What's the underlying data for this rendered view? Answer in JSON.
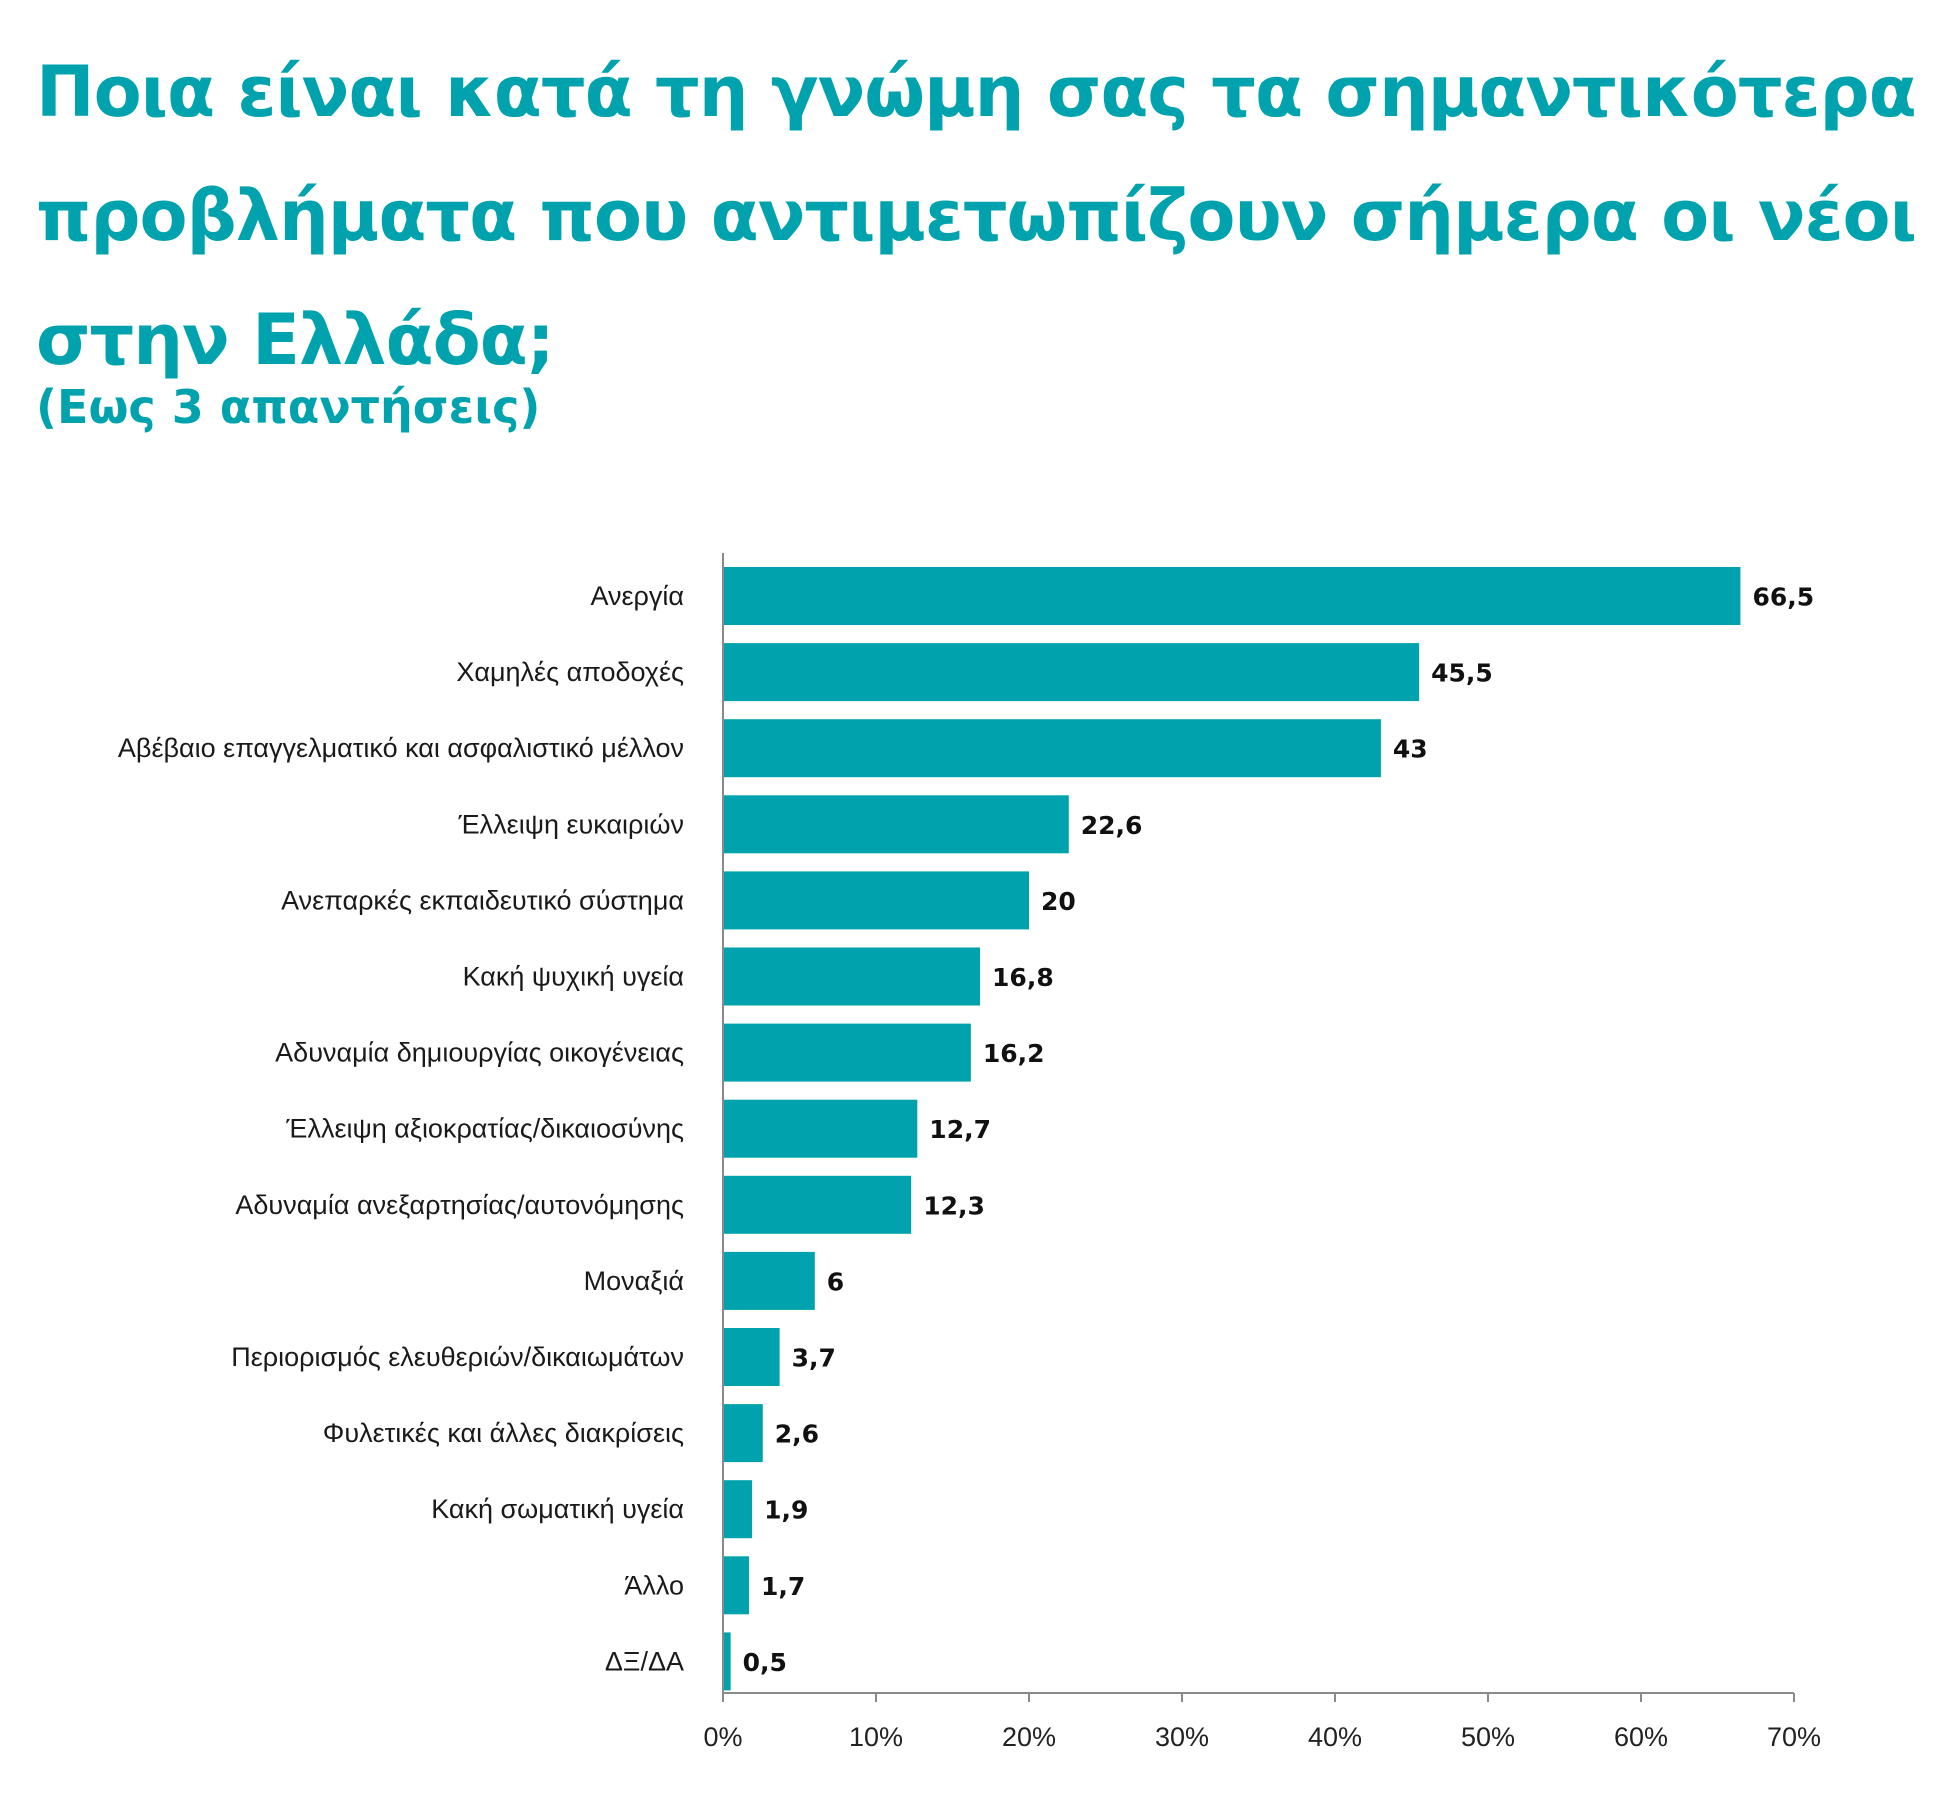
{
  "header": {
    "title": "Ποια είναι κατά τη γνώμη σας τα σημαντικότερα προβλήματα που αντιμετωπίζουν σήμερα οι νέοι στην Ελλάδα;",
    "subtitle": "(Εως 3 απαντήσεις)"
  },
  "colors": {
    "accent": "#00A3AD",
    "bar": "#00A3AD",
    "axis": "#8a8a8a"
  },
  "chart_data": {
    "type": "bar",
    "orientation": "horizontal",
    "categories": [
      "Ανεργία",
      "Χαμηλές αποδοχές",
      "Αβέβαιο επαγγελματικό και ασφαλιστικό μέλλον",
      "Έλλειψη ευκαιριών",
      "Ανεπαρκές εκπαιδευτικό σύστημα",
      "Κακή ψυχική υγεία",
      "Αδυναμία δημιουργίας οικογένειας",
      "Έλλειψη αξιοκρατίας/δικαιοσύνης",
      "Αδυναμία ανεξαρτησίας/αυτονόμησης",
      "Μοναξιά",
      "Περιορισμός ελευθεριών/δικαιωμάτων",
      "Φυλετικές και άλλες διακρίσεις",
      "Κακή σωματική υγεία",
      "Άλλο",
      "ΔΞ/ΔΑ"
    ],
    "values": [
      66.5,
      45.5,
      43,
      22.6,
      20,
      16.8,
      16.2,
      12.7,
      12.3,
      6,
      3.7,
      2.6,
      1.9,
      1.7,
      0.5
    ],
    "value_labels": [
      "66,5",
      "45,5",
      "43",
      "22,6",
      "20",
      "16,8",
      "16,2",
      "12,7",
      "12,3",
      "6",
      "3,7",
      "2,6",
      "1,9",
      "1,7",
      "0,5"
    ],
    "xlim": [
      0,
      70
    ],
    "x_ticks": [
      0,
      10,
      20,
      30,
      40,
      50,
      60,
      70
    ],
    "x_tick_labels": [
      "0%",
      "10%",
      "20%",
      "30%",
      "40%",
      "50%",
      "60%",
      "70%"
    ],
    "grid": false,
    "legend": "none"
  }
}
